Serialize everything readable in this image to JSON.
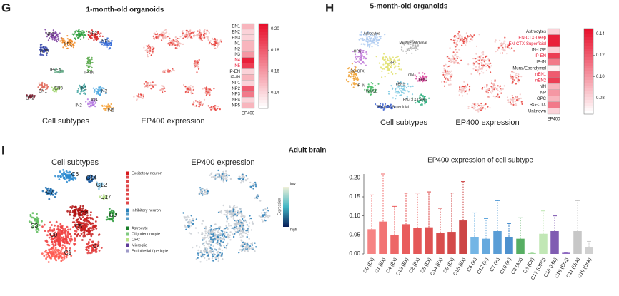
{
  "g": {
    "label": "G",
    "title": "1-month-old organoids",
    "umap_caption": "Cell subtypes",
    "expr_caption": "EP400 expression",
    "cluster_labels": [
      "NP3",
      "NP1",
      "NP2",
      "NP4",
      "NP5",
      "IP-EN",
      "IP-IN",
      "EN1",
      "EN2",
      "EN3",
      "IN1",
      "IN2",
      "IN3",
      "IN4",
      "IN5"
    ],
    "heatmap": {
      "type": "heatmap",
      "rows": [
        "EN1",
        "EN2",
        "EN3",
        "IN1",
        "IN2",
        "IN3",
        "IN4",
        "IN5",
        "IP-EN",
        "IP-IN",
        "NP1",
        "NP2",
        "NP3",
        "NP4",
        "NP5"
      ],
      "column": "EP400",
      "values": [
        0.15,
        0.14,
        0.14,
        0.15,
        0.15,
        0.16,
        0.2,
        0.19,
        0.14,
        0.15,
        0.14,
        0.18,
        0.17,
        0.14,
        0.15
      ],
      "clim": [
        0.125,
        0.205
      ],
      "cticks": [
        0.14,
        0.16,
        0.18,
        {
          "value": 0.2,
          "label": "0.20"
        }
      ],
      "colors": [
        "#ffffff",
        "#e8112d"
      ],
      "highlight_rows": [
        6,
        7
      ],
      "highlight_color": "#e8112d"
    }
  },
  "h": {
    "label": "H",
    "title": "5-month-old organoids",
    "umap_caption": "Cell subtypes",
    "expr_caption": "EP400 expression",
    "cluster_labels": [
      "Astrocytes",
      "Mural/Ependymal",
      "OPC",
      "RG-CTX",
      "NP",
      "IP-IN",
      "IN-LGE",
      "nEN1",
      "nIN",
      "nEN2",
      "EN-CTX-Deep",
      "EN-CTX-Superficial"
    ],
    "heatmap": {
      "type": "heatmap",
      "rows": [
        "Astrocytes",
        "EN-CTX-Deep",
        "EN-CTX-Superficial",
        "IN-LGE",
        "IP-EN",
        "IP-IN",
        "Mural/Ependymal",
        "nEN1",
        "nEN2",
        "nIN",
        "NP",
        "OPC",
        "RG-CTX",
        "Unknown"
      ],
      "column": "EP400",
      "values": [
        0.08,
        0.14,
        0.14,
        0.08,
        0.13,
        0.11,
        0.07,
        0.12,
        0.13,
        0.09,
        0.1,
        0.09,
        0.11,
        0.08
      ],
      "clim": [
        0.065,
        0.145
      ],
      "cticks": [
        0.08,
        {
          "value": 0.1,
          "label": "0.10"
        },
        0.12,
        0.14
      ],
      "colors": [
        "#ffffff",
        "#e8112d"
      ],
      "highlight_rows": [
        1,
        2,
        4,
        7,
        8
      ],
      "highlight_color": "#e8112d"
    }
  },
  "i": {
    "label": "I",
    "title": "Adult brain",
    "umap_caption": "Cell subtypes",
    "expr_caption": "EP400 expression",
    "cluster_labels": [
      "C7",
      "C6",
      "C14",
      "C17",
      "C12",
      "C9",
      "C3",
      "C0",
      "C1",
      "C2",
      "C5",
      "C4"
    ],
    "legend": [
      {
        "name": "Excitatory neuron",
        "color": "#d7191c"
      },
      {
        "name": "Inhibitory neuron",
        "color": "#2b83ba"
      },
      {
        "name": "Astrocyte",
        "color": "#1a7f2a"
      },
      {
        "name": "Oligodendrocyte",
        "color": "#7fc97f"
      },
      {
        "name": "OPC",
        "color": "#b8e186"
      },
      {
        "name": "Microglia",
        "color": "#5e3c99"
      },
      {
        "name": "Endothelial / pericyte",
        "color": "#9e9ac8"
      }
    ],
    "expr_scale": {
      "low": "low",
      "high": "high",
      "label": "Expression"
    },
    "chart_data": {
      "type": "bar",
      "title": "EP400 expression of cell subtype",
      "categories": [
        "C0 (Ex)",
        "C1 (Ex)",
        "C4 (Ex)",
        "C13 (Ex)",
        "C2 (Ex)",
        "C5 (Ex)",
        "C14 (Ex)",
        "C9 (Ex)",
        "C15 (Ex)",
        "C6 (In)",
        "C12 (In)",
        "C7 (In)",
        "C10 (In)",
        "C8 (Ast)",
        "C3 (Oli)",
        "C17 (OPC)",
        "C16 (Mic)",
        "C18 (End)",
        "C11 (Unk)",
        "C19 (Unk)"
      ],
      "values": [
        0.065,
        0.085,
        0.05,
        0.078,
        0.068,
        0.07,
        0.055,
        0.058,
        0.088,
        0.045,
        0.04,
        0.06,
        0.045,
        0.04,
        0.002,
        0.053,
        0.06,
        0.003,
        0.06,
        0.018
      ],
      "upper": [
        0.155,
        0.21,
        0.125,
        0.16,
        0.16,
        0.163,
        0.12,
        0.16,
        0.19,
        0.108,
        0.093,
        0.14,
        0.08,
        0.095,
        0.004,
        0.113,
        0.1,
        0.004,
        0.14,
        0.033
      ],
      "colors": [
        "#f46d6d",
        "#f05a5a",
        "#ea4c4c",
        "#e54040",
        "#e03a3a",
        "#d93434",
        "#d22e2e",
        "#cc2a2a",
        "#c42424",
        "#5aa8e0",
        "#4a9ad8",
        "#3c8ccf",
        "#2e7ec6",
        "#3aa048",
        "#8ed08a",
        "#b6e3a8",
        "#6a3fa5",
        "#7a4fb5",
        "#bdbdbd",
        "#c8c8c8"
      ],
      "ylim": [
        0,
        0.21
      ],
      "yticks": [
        {
          "value": 0,
          "label": "0.00"
        },
        0.05,
        {
          "value": 0.1,
          "label": "0.10"
        },
        0.15,
        {
          "value": 0.2,
          "label": "0.20"
        }
      ]
    }
  }
}
